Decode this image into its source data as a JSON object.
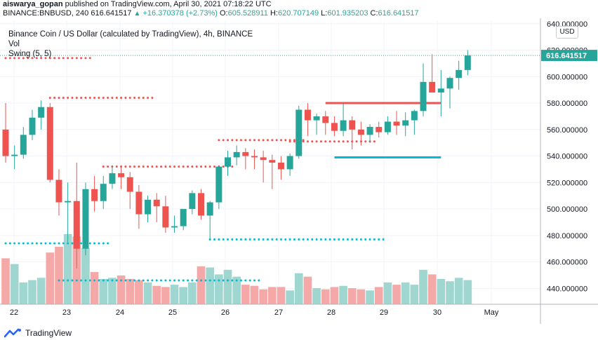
{
  "header": {
    "author": "aiswarya_gopan",
    "published_text": "published on TradingView.com, April 30, 2021 07:18:22 UTC",
    "symbol": "BINANCE:BNBUSD, 240",
    "last": "616.641517",
    "change": "+16.370378 (+2.73%)",
    "o_label": "O:",
    "o_value": "605.528911",
    "h_label": "H:",
    "h_value": "620.707149",
    "l_label": "L:",
    "l_value": "601.935203",
    "c_label": "C:",
    "c_value": "616.641517"
  },
  "legend": {
    "title": "Binance Coin / US Dollar (calculated by TradingView), 4h, BINANCE",
    "vol": "Vol",
    "swing": "Swing (5, 5)"
  },
  "currency_button": "USD",
  "brand": "TradingView",
  "colors": {
    "up": "#26a69a",
    "down": "#ef5350",
    "vol_up": "#9fd6d0",
    "vol_down": "#f4a9a8",
    "cyan": "#00bcd4"
  },
  "chart_data": {
    "type": "candlestick",
    "title": "Binance Coin / US Dollar (calculated by TradingView), 4h, BINANCE",
    "interval": "4h",
    "ylim": [
      428,
      642
    ],
    "y_ticks": [
      "640.000000",
      "620.000000",
      "600.000000",
      "580.000000",
      "560.000000",
      "540.000000",
      "520.000000",
      "500.000000",
      "480.000000",
      "460.000000",
      "440.000000"
    ],
    "x_ticks": [
      "22",
      "23",
      "24",
      "25",
      "26",
      "27",
      "28",
      "29",
      "30",
      "May"
    ],
    "last_price_label": "616.641517",
    "candles": [
      {
        "o": 560,
        "h": 580,
        "l": 535,
        "c": 540
      },
      {
        "o": 540,
        "h": 548,
        "l": 530,
        "c": 541
      },
      {
        "o": 541,
        "h": 562,
        "l": 538,
        "c": 556
      },
      {
        "o": 556,
        "h": 575,
        "l": 552,
        "c": 569
      },
      {
        "o": 569,
        "h": 582,
        "l": 560,
        "c": 577
      },
      {
        "o": 577,
        "h": 580,
        "l": 520,
        "c": 522
      },
      {
        "o": 522,
        "h": 530,
        "l": 495,
        "c": 505
      },
      {
        "o": 505,
        "h": 520,
        "l": 475,
        "c": 506
      },
      {
        "o": 506,
        "h": 535,
        "l": 455,
        "c": 470
      },
      {
        "o": 470,
        "h": 520,
        "l": 465,
        "c": 515
      },
      {
        "o": 515,
        "h": 525,
        "l": 498,
        "c": 506
      },
      {
        "o": 506,
        "h": 525,
        "l": 500,
        "c": 519
      },
      {
        "o": 519,
        "h": 533,
        "l": 515,
        "c": 527
      },
      {
        "o": 527,
        "h": 533,
        "l": 515,
        "c": 524
      },
      {
        "o": 524,
        "h": 528,
        "l": 500,
        "c": 513
      },
      {
        "o": 513,
        "h": 518,
        "l": 485,
        "c": 496
      },
      {
        "o": 496,
        "h": 510,
        "l": 490,
        "c": 507
      },
      {
        "o": 507,
        "h": 512,
        "l": 490,
        "c": 502
      },
      {
        "o": 502,
        "h": 510,
        "l": 482,
        "c": 486
      },
      {
        "o": 486,
        "h": 495,
        "l": 482,
        "c": 487
      },
      {
        "o": 487,
        "h": 500,
        "l": 484,
        "c": 500
      },
      {
        "o": 500,
        "h": 514,
        "l": 496,
        "c": 512
      },
      {
        "o": 512,
        "h": 515,
        "l": 492,
        "c": 495
      },
      {
        "o": 495,
        "h": 506,
        "l": 476,
        "c": 505
      },
      {
        "o": 505,
        "h": 533,
        "l": 500,
        "c": 532
      },
      {
        "o": 532,
        "h": 544,
        "l": 525,
        "c": 539
      },
      {
        "o": 539,
        "h": 548,
        "l": 533,
        "c": 543
      },
      {
        "o": 543,
        "h": 546,
        "l": 530,
        "c": 540
      },
      {
        "o": 540,
        "h": 545,
        "l": 530,
        "c": 539
      },
      {
        "o": 539,
        "h": 544,
        "l": 520,
        "c": 537
      },
      {
        "o": 537,
        "h": 541,
        "l": 515,
        "c": 535
      },
      {
        "o": 535,
        "h": 540,
        "l": 522,
        "c": 530
      },
      {
        "o": 530,
        "h": 542,
        "l": 525,
        "c": 540
      },
      {
        "o": 540,
        "h": 578,
        "l": 538,
        "c": 575
      },
      {
        "o": 575,
        "h": 580,
        "l": 555,
        "c": 567
      },
      {
        "o": 567,
        "h": 572,
        "l": 556,
        "c": 570
      },
      {
        "o": 570,
        "h": 574,
        "l": 556,
        "c": 565
      },
      {
        "o": 565,
        "h": 570,
        "l": 555,
        "c": 559
      },
      {
        "o": 559,
        "h": 580,
        "l": 555,
        "c": 567
      },
      {
        "o": 567,
        "h": 570,
        "l": 545,
        "c": 560
      },
      {
        "o": 560,
        "h": 566,
        "l": 548,
        "c": 556
      },
      {
        "o": 556,
        "h": 564,
        "l": 550,
        "c": 562
      },
      {
        "o": 562,
        "h": 566,
        "l": 554,
        "c": 558
      },
      {
        "o": 558,
        "h": 570,
        "l": 556,
        "c": 566
      },
      {
        "o": 566,
        "h": 574,
        "l": 556,
        "c": 563
      },
      {
        "o": 563,
        "h": 573,
        "l": 555,
        "c": 567
      },
      {
        "o": 567,
        "h": 575,
        "l": 556,
        "c": 574
      },
      {
        "o": 574,
        "h": 610,
        "l": 570,
        "c": 596
      },
      {
        "o": 596,
        "h": 617,
        "l": 590,
        "c": 588
      },
      {
        "o": 588,
        "h": 605,
        "l": 570,
        "c": 591
      },
      {
        "o": 591,
        "h": 600,
        "l": 576,
        "c": 599
      },
      {
        "o": 599,
        "h": 612,
        "l": 590,
        "c": 605
      },
      {
        "o": 605,
        "h": 620,
        "l": 601,
        "c": 616
      }
    ],
    "volume": [
      80,
      70,
      38,
      42,
      46,
      90,
      100,
      122,
      118,
      98,
      56,
      44,
      46,
      50,
      44,
      42,
      38,
      32,
      30,
      34,
      30,
      38,
      66,
      64,
      52,
      60,
      48,
      34,
      32,
      26,
      30,
      30,
      24,
      54,
      48,
      28,
      26,
      30,
      32,
      28,
      26,
      24,
      30,
      38,
      34,
      38,
      34,
      60,
      52,
      44,
      40,
      46,
      42
    ],
    "swing_levels": [
      {
        "y": 614,
        "x0": 0,
        "x1": 9,
        "color": "#ef5350"
      },
      {
        "y": 584,
        "x0": 5,
        "x1": 16,
        "color": "#ef5350"
      },
      {
        "y": 532,
        "x0": 11,
        "x1": 25,
        "color": "#ef5350"
      },
      {
        "y": 552,
        "x0": 24,
        "x1": 33,
        "color": "#ef5350"
      },
      {
        "y": 551,
        "x0": 32,
        "x1": 41,
        "color": "#ef5350"
      },
      {
        "y": 474,
        "x0": 0,
        "x1": 11,
        "color": "#00bcd4"
      },
      {
        "y": 446,
        "x0": 6,
        "x1": 28,
        "color": "#00bcd4"
      },
      {
        "y": 477,
        "x0": 23,
        "x1": 42,
        "color": "#00bcd4"
      }
    ],
    "sr_lines": [
      {
        "y": 580,
        "x0": 36,
        "x1": 49,
        "color": "#ef5350"
      },
      {
        "y": 539,
        "x0": 37,
        "x1": 49,
        "color": "#00bcd4"
      }
    ]
  }
}
